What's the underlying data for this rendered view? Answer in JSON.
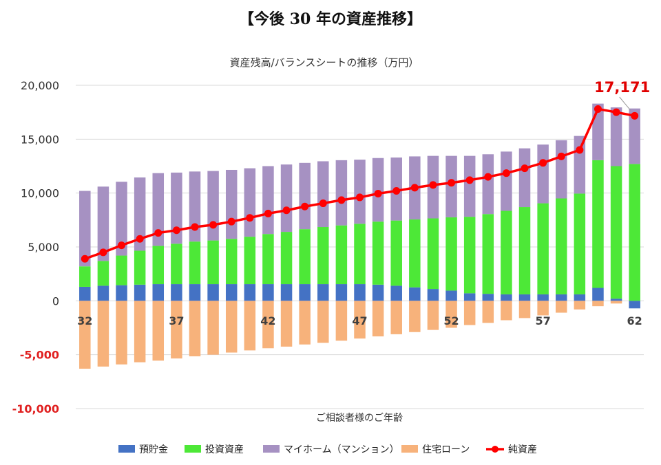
{
  "page": {
    "title": "【今後 30 年の資産推移】"
  },
  "chart_data": {
    "type": "bar",
    "title": "資産残高/バランスシートの推移（万円）",
    "xlabel": "ご相談者様のご年齢",
    "ylabel": "",
    "ylim": [
      -10000,
      20000
    ],
    "yticks": [
      20000,
      15000,
      10000,
      5000,
      0,
      -5000,
      -10000
    ],
    "ytick_labels": [
      "20,000",
      "15,000",
      "10,000",
      "5,000",
      "0",
      "-5,000",
      "-10,000"
    ],
    "categories": [
      32,
      33,
      34,
      35,
      36,
      37,
      38,
      39,
      40,
      41,
      42,
      43,
      44,
      45,
      46,
      47,
      48,
      49,
      50,
      51,
      52,
      53,
      54,
      55,
      56,
      57,
      58,
      59,
      60,
      61,
      62
    ],
    "x_tick_labels": [
      {
        "age": 32,
        "label": "32"
      },
      {
        "age": 37,
        "label": "37"
      },
      {
        "age": 42,
        "label": "42"
      },
      {
        "age": 47,
        "label": "47"
      },
      {
        "age": 52,
        "label": "52"
      },
      {
        "age": 57,
        "label": "57"
      },
      {
        "age": 62,
        "label": "62"
      }
    ],
    "grid": true,
    "legend_position": "bottom",
    "series": [
      {
        "name": "預貯金",
        "kind": "bar",
        "color": "#4472c4",
        "values": [
          1300,
          1400,
          1450,
          1500,
          1550,
          1550,
          1550,
          1550,
          1550,
          1550,
          1550,
          1550,
          1550,
          1550,
          1550,
          1550,
          1500,
          1400,
          1250,
          1100,
          950,
          700,
          650,
          600,
          600,
          600,
          600,
          600,
          1200,
          200,
          -700
        ]
      },
      {
        "name": "投資資産",
        "kind": "bar",
        "color": "#4de837",
        "values": [
          1900,
          2300,
          2750,
          3150,
          3550,
          3750,
          3950,
          4050,
          4200,
          4400,
          4650,
          4850,
          5100,
          5300,
          5450,
          5600,
          5850,
          6050,
          6300,
          6550,
          6800,
          7100,
          7400,
          7750,
          8100,
          8450,
          8900,
          9350,
          11850,
          12300,
          12700
        ]
      },
      {
        "name": "マイホーム（マンション）",
        "kind": "bar",
        "color": "#a691c2",
        "values": [
          7000,
          6900,
          6850,
          6800,
          6750,
          6600,
          6500,
          6450,
          6400,
          6350,
          6300,
          6250,
          6150,
          6100,
          6050,
          5950,
          5900,
          5850,
          5850,
          5800,
          5700,
          5650,
          5550,
          5500,
          5450,
          5450,
          5400,
          5350,
          5250,
          5450,
          5150
        ]
      },
      {
        "name": "住宅ローン",
        "kind": "bar",
        "color": "#f7b27b",
        "values": [
          -6300,
          -6100,
          -5900,
          -5700,
          -5550,
          -5350,
          -5150,
          -5000,
          -4800,
          -4600,
          -4400,
          -4250,
          -4050,
          -3900,
          -3700,
          -3500,
          -3300,
          -3100,
          -2900,
          -2700,
          -2500,
          -2250,
          -2050,
          -1800,
          -1600,
          -1350,
          -1100,
          -800,
          -500,
          -250,
          0
        ]
      },
      {
        "name": "純資産",
        "kind": "line",
        "color": "#ff0000",
        "values": [
          3900,
          4500,
          5150,
          5750,
          6300,
          6550,
          6850,
          7050,
          7350,
          7700,
          8100,
          8400,
          8750,
          9050,
          9350,
          9600,
          9950,
          10200,
          10500,
          10750,
          10950,
          11200,
          11500,
          11850,
          12300,
          12800,
          13400,
          14000,
          17800,
          17500,
          17171
        ]
      }
    ],
    "annotations": [
      {
        "text": "17,171",
        "age": 62,
        "value": 17171
      }
    ]
  }
}
